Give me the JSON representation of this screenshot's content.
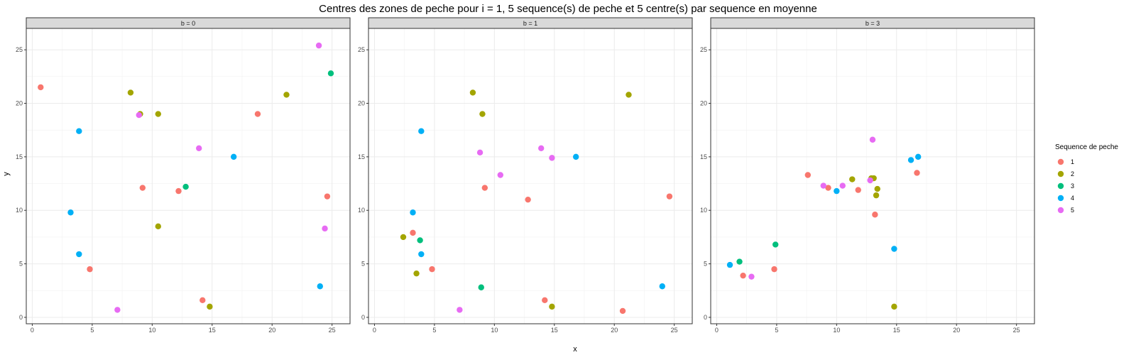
{
  "chart_data": {
    "type": "scatter",
    "title": "Centres des zones de peche pour i = 1, 5 sequence(s) de peche et 5 centre(s) par sequence en moyenne",
    "xlabel": "x",
    "ylabel": "y",
    "xlim": [
      -0.5,
      26.5
    ],
    "ylim": [
      -0.6,
      27.0
    ],
    "xticks": [
      0,
      5,
      10,
      15,
      20,
      25
    ],
    "yticks": [
      0,
      5,
      10,
      15,
      20,
      25
    ],
    "grid": true,
    "legend": {
      "title": "Sequence de peche",
      "position": "right",
      "entries": [
        {
          "name": "1",
          "color": "#F8766D"
        },
        {
          "name": "2",
          "color": "#A3A500"
        },
        {
          "name": "3",
          "color": "#00BF7D"
        },
        {
          "name": "4",
          "color": "#00B0F6"
        },
        {
          "name": "5",
          "color": "#E76BF3"
        }
      ]
    },
    "panels": [
      {
        "label": "b = 0",
        "series": [
          {
            "name": "1",
            "points": [
              [
                0.7,
                21.5
              ],
              [
                4.8,
                4.5
              ],
              [
                9.2,
                12.1
              ],
              [
                12.2,
                11.8
              ],
              [
                14.2,
                1.6
              ],
              [
                18.8,
                19.0
              ],
              [
                24.6,
                11.3
              ]
            ]
          },
          {
            "name": "2",
            "points": [
              [
                8.2,
                21.0
              ],
              [
                9.0,
                19.0
              ],
              [
                10.5,
                19.0
              ],
              [
                10.5,
                8.5
              ],
              [
                14.8,
                1.0
              ],
              [
                21.2,
                20.8
              ]
            ]
          },
          {
            "name": "3",
            "points": [
              [
                12.8,
                12.2
              ],
              [
                24.9,
                22.8
              ]
            ]
          },
          {
            "name": "4",
            "points": [
              [
                3.9,
                17.4
              ],
              [
                3.2,
                9.8
              ],
              [
                3.9,
                5.9
              ],
              [
                16.8,
                15.0
              ],
              [
                24.0,
                2.9
              ]
            ]
          },
          {
            "name": "5",
            "points": [
              [
                8.9,
                18.9
              ],
              [
                13.9,
                15.8
              ],
              [
                7.1,
                0.7
              ],
              [
                23.9,
                25.4
              ],
              [
                24.4,
                8.3
              ]
            ]
          }
        ]
      },
      {
        "label": "b = 1",
        "series": [
          {
            "name": "1",
            "points": [
              [
                3.2,
                7.9
              ],
              [
                4.8,
                4.5
              ],
              [
                9.2,
                12.1
              ],
              [
                12.8,
                11.0
              ],
              [
                14.2,
                1.6
              ],
              [
                20.7,
                0.6
              ],
              [
                24.6,
                11.3
              ]
            ]
          },
          {
            "name": "2",
            "points": [
              [
                8.2,
                21.0
              ],
              [
                9.0,
                19.0
              ],
              [
                2.4,
                7.5
              ],
              [
                3.5,
                4.1
              ],
              [
                14.8,
                1.0
              ],
              [
                21.2,
                20.8
              ]
            ]
          },
          {
            "name": "3",
            "points": [
              [
                3.8,
                7.2
              ],
              [
                8.9,
                2.8
              ]
            ]
          },
          {
            "name": "4",
            "points": [
              [
                3.9,
                17.4
              ],
              [
                3.2,
                9.8
              ],
              [
                3.9,
                5.9
              ],
              [
                16.8,
                15.0
              ],
              [
                24.0,
                2.9
              ]
            ]
          },
          {
            "name": "5",
            "points": [
              [
                8.8,
                15.4
              ],
              [
                10.5,
                13.3
              ],
              [
                13.9,
                15.8
              ],
              [
                14.8,
                14.9
              ],
              [
                7.1,
                0.7
              ]
            ]
          }
        ]
      },
      {
        "label": "b = 3",
        "series": [
          {
            "name": "1",
            "points": [
              [
                2.2,
                3.9
              ],
              [
                4.8,
                4.5
              ],
              [
                7.6,
                13.3
              ],
              [
                9.3,
                12.1
              ],
              [
                11.8,
                11.9
              ],
              [
                13.2,
                9.6
              ],
              [
                16.7,
                13.5
              ]
            ]
          },
          {
            "name": "2",
            "points": [
              [
                11.3,
                12.9
              ],
              [
                12.9,
                13.0
              ],
              [
                13.1,
                13.0
              ],
              [
                13.4,
                12.0
              ],
              [
                13.3,
                11.4
              ],
              [
                14.8,
                1.0
              ]
            ]
          },
          {
            "name": "3",
            "points": [
              [
                1.9,
                5.2
              ],
              [
                4.9,
                6.8
              ]
            ]
          },
          {
            "name": "4",
            "points": [
              [
                1.1,
                4.9
              ],
              [
                10.0,
                11.8
              ],
              [
                14.8,
                6.4
              ],
              [
                16.2,
                14.7
              ],
              [
                16.8,
                15.0
              ]
            ]
          },
          {
            "name": "5",
            "points": [
              [
                2.9,
                3.8
              ],
              [
                8.9,
                12.3
              ],
              [
                10.5,
                12.3
              ],
              [
                12.8,
                12.8
              ],
              [
                13.0,
                16.6
              ]
            ]
          }
        ]
      }
    ]
  }
}
